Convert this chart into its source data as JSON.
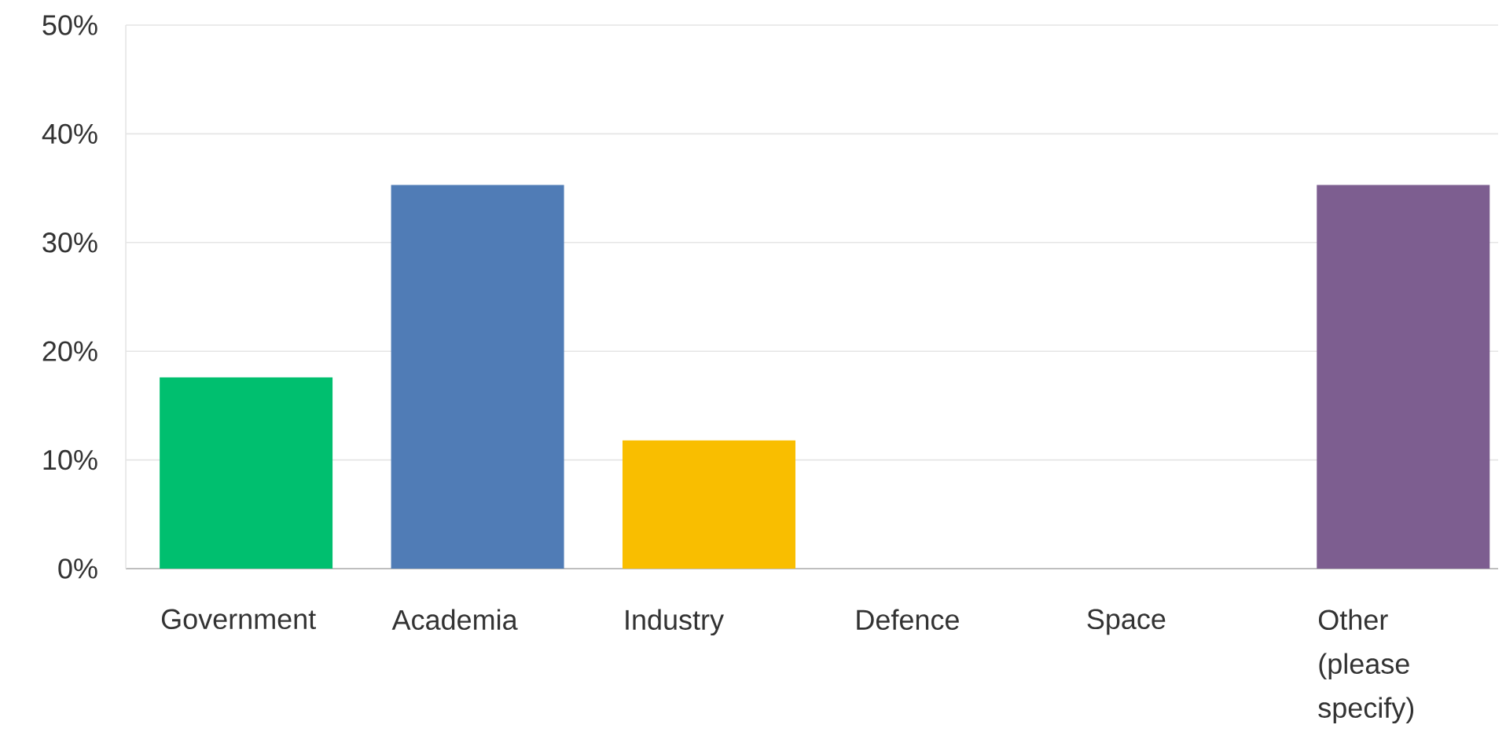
{
  "chart_data": {
    "type": "bar",
    "categories": [
      "Government",
      "Academia",
      "Industry",
      "Defence",
      "Space",
      "Other (please specify)"
    ],
    "values": [
      17.6,
      35.3,
      11.8,
      0,
      0,
      35.3
    ],
    "colors": [
      "#00bf6f",
      "#507cb6",
      "#f9be00",
      "#6bc8cd",
      "#ff8b4f",
      "#7d5e90"
    ],
    "ylim": [
      0,
      50
    ],
    "yticks": [
      {
        "value": 0,
        "label": "0%"
      },
      {
        "value": 10,
        "label": "10%"
      },
      {
        "value": 20,
        "label": "20%"
      },
      {
        "value": 30,
        "label": "30%"
      },
      {
        "value": 40,
        "label": "40%"
      },
      {
        "value": 50,
        "label": "50%"
      }
    ],
    "grid": "y"
  }
}
